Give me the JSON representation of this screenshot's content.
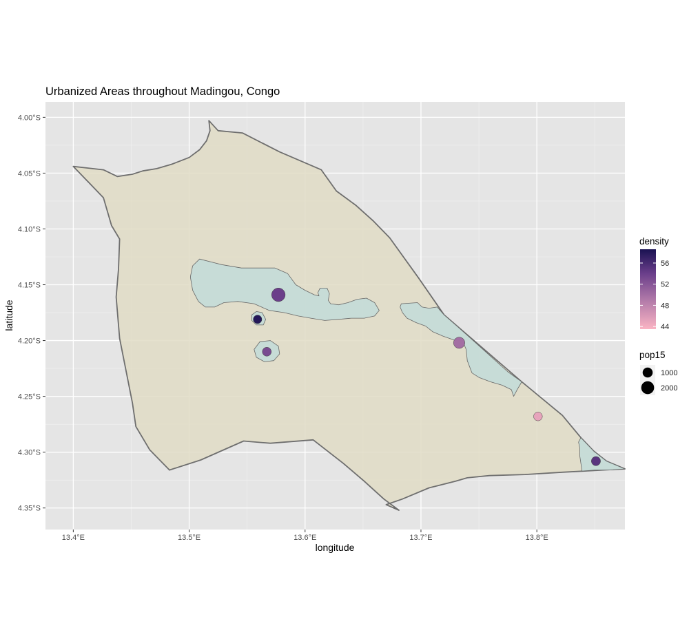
{
  "chart_data": {
    "type": "map",
    "title": "Urbanized Areas throughout Madingou, Congo",
    "xlabel": "longitude",
    "ylabel": "latitude",
    "xlim": [
      13.376,
      13.876
    ],
    "ylim": [
      -4.3693,
      -3.9862
    ],
    "x_ticks": [
      {
        "value": 13.4,
        "label": "13.4°E"
      },
      {
        "value": 13.5,
        "label": "13.5°E"
      },
      {
        "value": 13.6,
        "label": "13.6°E"
      },
      {
        "value": 13.7,
        "label": "13.7°E"
      },
      {
        "value": 13.8,
        "label": "13.8°E"
      }
    ],
    "y_ticks": [
      {
        "value": -4.0,
        "label": "4.00°S"
      },
      {
        "value": -4.05,
        "label": "4.05°S"
      },
      {
        "value": -4.1,
        "label": "4.10°S"
      },
      {
        "value": -4.15,
        "label": "4.15°S"
      },
      {
        "value": -4.2,
        "label": "4.20°S"
      },
      {
        "value": -4.25,
        "label": "4.25°S"
      },
      {
        "value": -4.3,
        "label": "4.30°S"
      },
      {
        "value": -4.35,
        "label": "4.35°S"
      }
    ],
    "grid": true,
    "colors": {
      "panel_bg": "#e5e5e5",
      "grid": "#ffffff",
      "boundary_fill": "#e0dcc6",
      "boundary_stroke": "#6e6e6e",
      "urban_fill": "#c4dbd8",
      "urban_stroke": "#666666",
      "density_low": "#fbb4c3",
      "density_high": "#1a1252"
    },
    "district_boundary": [
      [
        13.4,
        -4.044
      ],
      [
        13.426,
        -4.047
      ],
      [
        13.438,
        -4.053
      ],
      [
        13.451,
        -4.051
      ],
      [
        13.46,
        -4.048
      ],
      [
        13.472,
        -4.046
      ],
      [
        13.485,
        -4.042
      ],
      [
        13.5,
        -4.036
      ],
      [
        13.509,
        -4.029
      ],
      [
        13.515,
        -4.021
      ],
      [
        13.518,
        -4.012
      ],
      [
        13.517,
        -4.003
      ],
      [
        13.525,
        -4.012
      ],
      [
        13.546,
        -4.014
      ],
      [
        13.578,
        -4.031
      ],
      [
        13.614,
        -4.047
      ],
      [
        13.627,
        -4.066
      ],
      [
        13.644,
        -4.079
      ],
      [
        13.659,
        -4.093
      ],
      [
        13.673,
        -4.108
      ],
      [
        13.698,
        -4.144
      ],
      [
        13.72,
        -4.177
      ],
      [
        13.787,
        -4.237
      ],
      [
        13.822,
        -4.267
      ],
      [
        13.838,
        -4.287
      ],
      [
        13.849,
        -4.299
      ],
      [
        13.86,
        -4.308
      ],
      [
        13.876,
        -4.315
      ],
      [
        13.822,
        -4.318
      ],
      [
        13.79,
        -4.32
      ],
      [
        13.759,
        -4.321
      ],
      [
        13.74,
        -4.323
      ],
      [
        13.73,
        -4.326
      ],
      [
        13.707,
        -4.332
      ],
      [
        13.684,
        -4.342
      ],
      [
        13.67,
        -4.347
      ],
      [
        13.681,
        -4.352
      ],
      [
        13.668,
        -4.342
      ],
      [
        13.651,
        -4.326
      ],
      [
        13.633,
        -4.31
      ],
      [
        13.607,
        -4.289
      ],
      [
        13.57,
        -4.292
      ],
      [
        13.547,
        -4.29
      ],
      [
        13.51,
        -4.307
      ],
      [
        13.483,
        -4.316
      ],
      [
        13.466,
        -4.298
      ],
      [
        13.454,
        -4.277
      ],
      [
        13.451,
        -4.256
      ],
      [
        13.44,
        -4.198
      ],
      [
        13.437,
        -4.161
      ],
      [
        13.439,
        -4.136
      ],
      [
        13.44,
        -4.109
      ],
      [
        13.433,
        -4.097
      ],
      [
        13.426,
        -4.072
      ]
    ],
    "urban_areas": [
      [
        [
          13.509,
          -4.127
        ],
        [
          13.528,
          -4.132
        ],
        [
          13.545,
          -4.135
        ],
        [
          13.559,
          -4.135
        ],
        [
          13.574,
          -4.135
        ],
        [
          13.585,
          -4.14
        ],
        [
          13.592,
          -4.15
        ],
        [
          13.6,
          -4.155
        ],
        [
          13.608,
          -4.159
        ],
        [
          13.612,
          -4.16
        ],
        [
          13.611,
          -4.157
        ],
        [
          13.613,
          -4.153
        ],
        [
          13.619,
          -4.153
        ],
        [
          13.621,
          -4.158
        ],
        [
          13.62,
          -4.164
        ],
        [
          13.622,
          -4.167
        ],
        [
          13.629,
          -4.168
        ],
        [
          13.637,
          -4.166
        ],
        [
          13.645,
          -4.163
        ],
        [
          13.653,
          -4.162
        ],
        [
          13.66,
          -4.166
        ],
        [
          13.664,
          -4.173
        ],
        [
          13.66,
          -4.178
        ],
        [
          13.651,
          -4.18
        ],
        [
          13.64,
          -4.18
        ],
        [
          13.629,
          -4.181
        ],
        [
          13.617,
          -4.182
        ],
        [
          13.605,
          -4.18
        ],
        [
          13.594,
          -4.178
        ],
        [
          13.582,
          -4.175
        ],
        [
          13.569,
          -4.173
        ],
        [
          13.556,
          -4.167
        ],
        [
          13.542,
          -4.165
        ],
        [
          13.53,
          -4.166
        ],
        [
          13.522,
          -4.17
        ],
        [
          13.514,
          -4.17
        ],
        [
          13.508,
          -4.165
        ],
        [
          13.503,
          -4.155
        ],
        [
          13.501,
          -4.143
        ],
        [
          13.503,
          -4.133
        ]
      ],
      [
        [
          13.558,
          -4.174
        ],
        [
          13.563,
          -4.175
        ],
        [
          13.566,
          -4.181
        ],
        [
          13.564,
          -4.186
        ],
        [
          13.558,
          -4.186
        ],
        [
          13.554,
          -4.182
        ],
        [
          13.554,
          -4.177
        ]
      ],
      [
        [
          13.561,
          -4.201
        ],
        [
          13.57,
          -4.2
        ],
        [
          13.577,
          -4.205
        ],
        [
          13.578,
          -4.212
        ],
        [
          13.573,
          -4.218
        ],
        [
          13.565,
          -4.219
        ],
        [
          13.558,
          -4.215
        ],
        [
          13.556,
          -4.208
        ]
      ],
      [
        [
          13.683,
          -4.167
        ],
        [
          13.697,
          -4.166
        ],
        [
          13.701,
          -4.17
        ],
        [
          13.707,
          -4.171
        ],
        [
          13.714,
          -4.17
        ],
        [
          13.72,
          -4.177
        ],
        [
          13.731,
          -4.187
        ],
        [
          13.745,
          -4.2
        ],
        [
          13.76,
          -4.214
        ],
        [
          13.775,
          -4.228
        ],
        [
          13.787,
          -4.237
        ],
        [
          13.783,
          -4.244
        ],
        [
          13.78,
          -4.25
        ],
        [
          13.778,
          -4.244
        ],
        [
          13.77,
          -4.24
        ],
        [
          13.76,
          -4.237
        ],
        [
          13.75,
          -4.233
        ],
        [
          13.744,
          -4.229
        ],
        [
          13.74,
          -4.218
        ],
        [
          13.739,
          -4.208
        ],
        [
          13.737,
          -4.203
        ],
        [
          13.727,
          -4.199
        ],
        [
          13.719,
          -4.196
        ],
        [
          13.71,
          -4.192
        ],
        [
          13.704,
          -4.187
        ],
        [
          13.696,
          -4.184
        ],
        [
          13.688,
          -4.18
        ],
        [
          13.684,
          -4.175
        ],
        [
          13.682,
          -4.17
        ]
      ],
      [
        [
          13.838,
          -4.287
        ],
        [
          13.849,
          -4.299
        ],
        [
          13.86,
          -4.308
        ],
        [
          13.876,
          -4.315
        ],
        [
          13.863,
          -4.316
        ],
        [
          13.85,
          -4.316
        ],
        [
          13.839,
          -4.317
        ],
        [
          13.838,
          -4.31
        ],
        [
          13.837,
          -4.303
        ],
        [
          13.837,
          -4.296
        ],
        [
          13.836,
          -4.291
        ]
      ]
    ],
    "points": [
      {
        "lon": 13.577,
        "lat": -4.159,
        "density": 54,
        "pop15": 2300
      },
      {
        "lon": 13.559,
        "lat": -4.181,
        "density": 58,
        "pop15": 600
      },
      {
        "lon": 13.567,
        "lat": -4.21,
        "density": 53,
        "pop15": 700
      },
      {
        "lon": 13.733,
        "lat": -4.202,
        "density": 50,
        "pop15": 1400
      },
      {
        "lon": 13.801,
        "lat": -4.268,
        "density": 45,
        "pop15": 650
      },
      {
        "lon": 13.851,
        "lat": -4.308,
        "density": 55,
        "pop15": 750
      }
    ],
    "legend_density": {
      "title": "density",
      "min": 43.5,
      "max": 58.6,
      "breaks": [
        {
          "value": 56,
          "label": "56"
        },
        {
          "value": 52,
          "label": "52"
        },
        {
          "value": 48,
          "label": "48"
        },
        {
          "value": 44,
          "label": "44"
        }
      ]
    },
    "legend_pop15": {
      "title": "pop15",
      "entries": [
        {
          "value": 1000,
          "label": "1000"
        },
        {
          "value": 2000,
          "label": "2000"
        }
      ]
    },
    "legend_placement": "right"
  }
}
